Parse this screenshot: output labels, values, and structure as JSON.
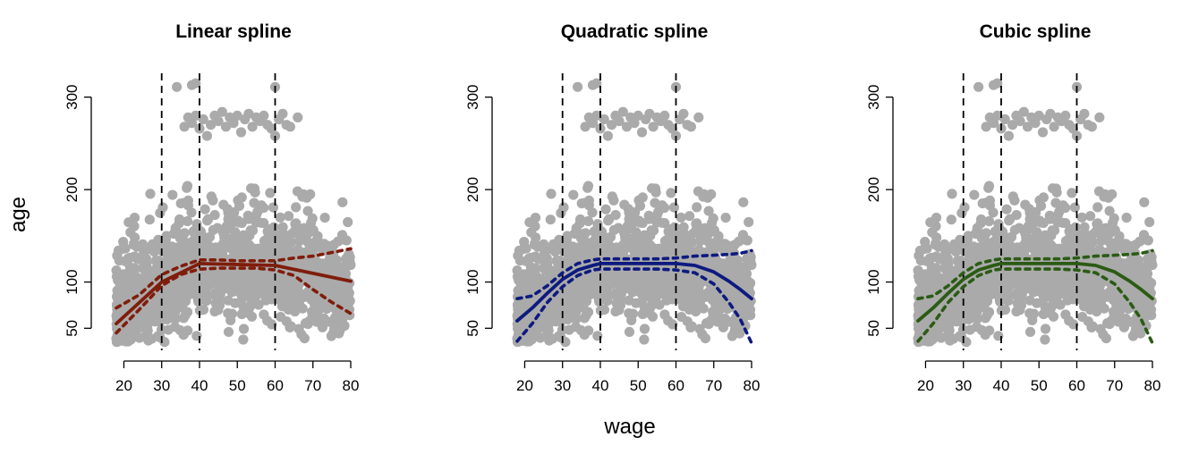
{
  "figure": {
    "xlabel": "wage",
    "ylabel": "age"
  },
  "colors": {
    "points": "#aaaaaa",
    "knot_lines": "#000000",
    "linear": "#7f1d0b",
    "quadratic": "#0d1a7f",
    "cubic": "#2b5b14"
  },
  "chart_data": [
    {
      "type": "scatter",
      "title": "Linear spline",
      "color": "#7f1d0b",
      "xlim": [
        18,
        80
      ],
      "ylim": [
        30,
        320
      ],
      "xticks": [
        20,
        30,
        40,
        50,
        60,
        70,
        80
      ],
      "yticks": [
        50,
        100,
        200,
        300
      ],
      "knots": [
        30,
        40,
        60
      ],
      "fit": {
        "x": [
          18,
          30,
          40,
          60,
          80
        ],
        "y": [
          55,
          100,
          120,
          118,
          101
        ]
      },
      "upper_band": {
        "x": [
          18,
          24,
          30,
          35,
          40,
          45,
          50,
          55,
          60,
          65,
          70,
          75,
          80
        ],
        "y": [
          72,
          86,
          108,
          117,
          124,
          124,
          123,
          123,
          123,
          126,
          128,
          132,
          136
        ]
      },
      "lower_band": {
        "x": [
          18,
          24,
          30,
          35,
          40,
          45,
          50,
          55,
          60,
          65,
          70,
          75,
          80
        ],
        "y": [
          45,
          70,
          96,
          108,
          114,
          115,
          115,
          115,
          113,
          107,
          92,
          78,
          66
        ]
      }
    },
    {
      "type": "scatter",
      "title": "Quadratic spline",
      "color": "#0d1a7f",
      "xlim": [
        18,
        80
      ],
      "ylim": [
        30,
        320
      ],
      "xticks": [
        20,
        30,
        40,
        50,
        60,
        70,
        80
      ],
      "yticks": [
        50,
        100,
        200,
        300
      ],
      "knots": [
        30,
        40,
        60
      ],
      "fit": {
        "x": [
          18,
          22,
          26,
          30,
          34,
          38,
          40,
          45,
          50,
          55,
          60,
          65,
          70,
          74,
          77,
          80
        ],
        "y": [
          58,
          72,
          88,
          103,
          113,
          118,
          120,
          120,
          120,
          120,
          120,
          118,
          111,
          101,
          92,
          82
        ]
      },
      "upper_band": {
        "x": [
          18,
          22,
          26,
          30,
          34,
          38,
          40,
          45,
          50,
          55,
          60,
          65,
          70,
          74,
          77,
          80
        ],
        "y": [
          82,
          85,
          96,
          110,
          120,
          124,
          125,
          125,
          125,
          125,
          126,
          128,
          129,
          130,
          131,
          134
        ]
      },
      "lower_band": {
        "x": [
          18,
          22,
          26,
          30,
          34,
          38,
          40,
          45,
          50,
          55,
          60,
          65,
          70,
          74,
          77,
          80
        ],
        "y": [
          36,
          55,
          78,
          95,
          107,
          113,
          114,
          114,
          114,
          114,
          113,
          110,
          98,
          78,
          60,
          34
        ]
      }
    },
    {
      "type": "scatter",
      "title": "Cubic spline",
      "color": "#2b5b14",
      "xlim": [
        18,
        80
      ],
      "ylim": [
        30,
        320
      ],
      "xticks": [
        20,
        30,
        40,
        50,
        60,
        70,
        80
      ],
      "yticks": [
        50,
        100,
        200,
        300
      ],
      "knots": [
        30,
        40,
        60
      ],
      "fit": {
        "x": [
          18,
          22,
          26,
          30,
          34,
          38,
          40,
          45,
          50,
          55,
          60,
          65,
          70,
          74,
          77,
          80
        ],
        "y": [
          58,
          72,
          88,
          103,
          113,
          118,
          120,
          120,
          120,
          120,
          120,
          118,
          111,
          101,
          92,
          82
        ]
      },
      "upper_band": {
        "x": [
          18,
          22,
          26,
          30,
          34,
          38,
          40,
          45,
          50,
          55,
          60,
          65,
          70,
          74,
          77,
          80
        ],
        "y": [
          82,
          85,
          96,
          110,
          120,
          124,
          125,
          125,
          125,
          125,
          126,
          128,
          129,
          130,
          131,
          134
        ]
      },
      "lower_band": {
        "x": [
          18,
          22,
          26,
          30,
          34,
          38,
          40,
          45,
          50,
          55,
          60,
          65,
          70,
          74,
          77,
          80
        ],
        "y": [
          36,
          55,
          78,
          95,
          107,
          113,
          114,
          114,
          114,
          114,
          113,
          110,
          98,
          78,
          60,
          34
        ]
      }
    }
  ],
  "scatter_points": {
    "n": 1400,
    "high_cluster": {
      "x": [
        36,
        37,
        38,
        39,
        40,
        41,
        42,
        43,
        44,
        45,
        46,
        47,
        48,
        49,
        50,
        51,
        52,
        53,
        54,
        55,
        56,
        57,
        58,
        59,
        60,
        61,
        62,
        63,
        64,
        66
      ],
      "y": [
        268,
        278,
        272,
        280,
        266,
        276,
        258,
        270,
        280,
        274,
        284,
        268,
        278,
        272,
        280,
        262,
        276,
        282,
        268,
        278,
        274,
        280,
        270,
        266,
        258,
        276,
        282,
        270,
        268,
        278
      ]
    },
    "very_high": {
      "x": [
        34,
        38,
        39,
        60
      ],
      "y": [
        311,
        313,
        315,
        311
      ]
    }
  }
}
